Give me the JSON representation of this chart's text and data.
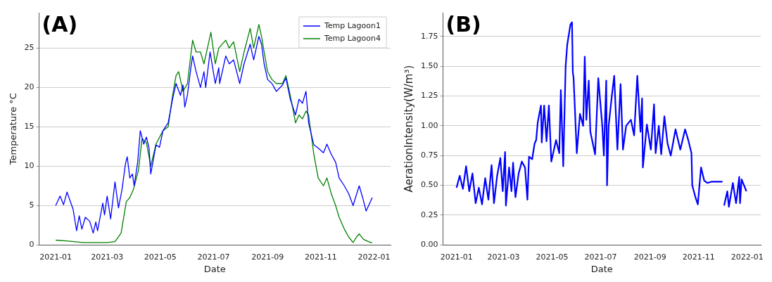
{
  "chart_data": [
    {
      "type": "line",
      "title": "(A)",
      "xlabel": "Date",
      "ylabel": "Temperature °C",
      "xlim": [
        "2020-12-13",
        "2022-01-20"
      ],
      "xticks": [
        "2021-01",
        "2021-03",
        "2021-05",
        "2021-07",
        "2021-09",
        "2021-11",
        "2022-01"
      ],
      "ylim": [
        0,
        29.5
      ],
      "yticks": [
        0,
        5,
        10,
        15,
        20,
        25
      ],
      "grid": "y",
      "legend": "top right",
      "series": [
        {
          "name": "Temp Lagoon1",
          "color": "#0000ff",
          "x": [
            "2021-01-01",
            "2021-01-06",
            "2021-01-10",
            "2021-01-14",
            "2021-01-21",
            "2021-01-25",
            "2021-01-28",
            "2021-01-31",
            "2021-02-04",
            "2021-02-09",
            "2021-02-13",
            "2021-02-16",
            "2021-02-18",
            "2021-02-24",
            "2021-02-26",
            "2021-03-01",
            "2021-03-05",
            "2021-03-10",
            "2021-03-14",
            "2021-03-18",
            "2021-03-22",
            "2021-03-24",
            "2021-03-27",
            "2021-03-30",
            "2021-04-01",
            "2021-04-05",
            "2021-04-08",
            "2021-04-12",
            "2021-04-15",
            "2021-04-18",
            "2021-04-20",
            "2021-04-26",
            "2021-04-30",
            "2021-05-04",
            "2021-05-10",
            "2021-05-15",
            "2021-05-19",
            "2021-05-24",
            "2021-05-27",
            "2021-05-29",
            "2021-06-01",
            "2021-06-05",
            "2021-06-07",
            "2021-06-11",
            "2021-06-16",
            "2021-06-20",
            "2021-06-22",
            "2021-06-27",
            "2021-07-03",
            "2021-07-07",
            "2021-07-08",
            "2021-07-15",
            "2021-07-19",
            "2021-07-24",
            "2021-07-31",
            "2021-08-05",
            "2021-08-12",
            "2021-08-16",
            "2021-08-22",
            "2021-08-25",
            "2021-08-28",
            "2021-09-01",
            "2021-09-06",
            "2021-09-11",
            "2021-09-18",
            "2021-09-22",
            "2021-09-27",
            "2021-10-03",
            "2021-10-07",
            "2021-10-11",
            "2021-10-15",
            "2021-10-18",
            "2021-10-24",
            "2021-10-29",
            "2021-11-04",
            "2021-11-08",
            "2021-11-13",
            "2021-11-18",
            "2021-11-22",
            "2021-11-28",
            "2021-12-03",
            "2021-12-08",
            "2021-12-15",
            "2021-12-19",
            "2021-12-23",
            "2021-12-30"
          ],
          "values": [
            5.0,
            6.2,
            5.1,
            6.7,
            4.5,
            1.8,
            3.7,
            2.0,
            3.5,
            3.0,
            1.5,
            2.9,
            1.8,
            5.3,
            3.8,
            6.2,
            3.3,
            8.0,
            4.7,
            7.0,
            10.3,
            11.2,
            8.5,
            9.0,
            7.5,
            10.5,
            14.5,
            12.8,
            13.7,
            12.3,
            9.0,
            12.7,
            12.4,
            14.5,
            15.5,
            18.5,
            20.5,
            19.0,
            20.3,
            17.5,
            19.0,
            22.5,
            24.0,
            22.0,
            20.0,
            22.0,
            20.0,
            24.5,
            20.5,
            22.5,
            20.5,
            24.0,
            23.0,
            23.5,
            20.5,
            23.0,
            25.5,
            23.5,
            26.5,
            25.5,
            23.0,
            21.0,
            20.5,
            19.5,
            20.3,
            21.2,
            18.5,
            16.5,
            18.5,
            18.0,
            19.5,
            15.5,
            12.7,
            12.3,
            11.7,
            12.8,
            11.5,
            10.5,
            8.5,
            7.5,
            6.5,
            5.0,
            7.5,
            6.0,
            4.3,
            6.0
          ]
        },
        {
          "name": "Temp Lagoon4",
          "color": "#008000",
          "x": [
            "2021-01-01",
            "2021-01-14",
            "2021-02-01",
            "2021-03-01",
            "2021-03-10",
            "2021-03-17",
            "2021-03-23",
            "2021-03-27",
            "2021-03-31",
            "2021-04-06",
            "2021-04-10",
            "2021-04-15",
            "2021-04-20",
            "2021-04-26",
            "2021-05-04",
            "2021-05-10",
            "2021-05-15",
            "2021-05-19",
            "2021-05-22",
            "2021-05-27",
            "2021-06-01",
            "2021-06-07",
            "2021-06-11",
            "2021-06-16",
            "2021-06-20",
            "2021-06-22",
            "2021-06-28",
            "2021-07-03",
            "2021-07-07",
            "2021-07-15",
            "2021-07-19",
            "2021-07-24",
            "2021-07-31",
            "2021-08-05",
            "2021-08-12",
            "2021-08-16",
            "2021-08-22",
            "2021-08-25",
            "2021-08-28",
            "2021-09-01",
            "2021-09-06",
            "2021-09-11",
            "2021-09-18",
            "2021-09-22",
            "2021-09-27",
            "2021-10-03",
            "2021-10-07",
            "2021-10-11",
            "2021-10-15",
            "2021-10-18",
            "2021-10-24",
            "2021-10-29",
            "2021-11-04",
            "2021-11-08",
            "2021-11-13",
            "2021-11-18",
            "2021-11-22",
            "2021-11-28",
            "2021-12-03",
            "2021-12-08",
            "2021-12-12",
            "2021-12-15",
            "2021-12-20",
            "2021-12-28",
            "2021-12-30"
          ],
          "values": [
            0.6,
            0.5,
            0.3,
            0.3,
            0.4,
            1.5,
            5.5,
            6.0,
            7.0,
            9.5,
            13.5,
            13.0,
            10.0,
            12.8,
            14.5,
            15.0,
            19.0,
            21.5,
            22.0,
            19.5,
            20.5,
            26.0,
            24.5,
            24.5,
            23.0,
            24.0,
            27.0,
            23.0,
            25.0,
            26.0,
            25.0,
            25.8,
            22.0,
            24.5,
            27.5,
            25.0,
            28.0,
            26.5,
            24.5,
            22.0,
            21.0,
            20.5,
            20.5,
            21.5,
            19.0,
            15.5,
            16.5,
            16.0,
            17.0,
            16.5,
            11.5,
            8.5,
            7.5,
            8.5,
            6.5,
            5.0,
            3.5,
            2.0,
            1.0,
            0.3,
            1.0,
            1.4,
            0.7,
            0.3,
            0.3
          ]
        }
      ]
    },
    {
      "type": "line",
      "title": "(B)",
      "xlabel": "Date",
      "ylabel": "AerationIntensity(W/m³)",
      "xlim": [
        "2020-12-15",
        "2022-01-18"
      ],
      "xticks": [
        "2021-01",
        "2021-03",
        "2021-05",
        "2021-07",
        "2021-09",
        "2021-11",
        "2022-01"
      ],
      "ylim": [
        0,
        1.95
      ],
      "yticks": [
        {
          "value": 0,
          "label": "0.00"
        },
        0.25,
        {
          "value": 0.5,
          "label": "0.50"
        },
        0.75,
        {
          "value": 1,
          "label": "1.00"
        },
        1.25,
        {
          "value": 1.5,
          "label": "1.50"
        },
        1.75
      ],
      "grid": "y",
      "series": [
        {
          "color": "#0000ff",
          "x": [
            "2021-01-01",
            "2021-01-05",
            "2021-01-09",
            "2021-01-13",
            "2021-01-17",
            "2021-01-21",
            "2021-01-25",
            "2021-01-29",
            "2021-02-02",
            "2021-02-06",
            "2021-02-10",
            "2021-02-14",
            "2021-02-17",
            "2021-02-21",
            "2021-02-25",
            "2021-02-28",
            "2021-03-03",
            "2021-03-04",
            "2021-03-08",
            "2021-03-11",
            "2021-03-13",
            "2021-03-16",
            "2021-03-20",
            "2021-03-24",
            "2021-03-28",
            "2021-03-31",
            "2021-04-02",
            "2021-04-06",
            "2021-04-09",
            "2021-04-11",
            "2021-04-13",
            "2021-04-17",
            "2021-04-18",
            "2021-04-21",
            "2021-04-24",
            "2021-04-27",
            "2021-04-30",
            "2021-05-06",
            "2021-05-10",
            "2021-05-12",
            "2021-05-15",
            "2021-05-18",
            "2021-05-20",
            "2021-05-24",
            "2021-05-26",
            "2021-05-27",
            "2021-05-28",
            "2021-06-01",
            "2021-06-05",
            "2021-06-09",
            "2021-06-11",
            "2021-06-13",
            "2021-06-16",
            "2021-06-18",
            "2021-06-24",
            "2021-06-28",
            "2021-07-03",
            "2021-07-05",
            "2021-07-08",
            "2021-07-09",
            "2021-07-11",
            "2021-07-15",
            "2021-07-18",
            "2021-07-22",
            "2021-07-26",
            "2021-07-29",
            "2021-08-02",
            "2021-08-08",
            "2021-08-12",
            "2021-08-16",
            "2021-08-20",
            "2021-08-22",
            "2021-08-23",
            "2021-08-28",
            "2021-09-02",
            "2021-09-06",
            "2021-09-08",
            "2021-09-12",
            "2021-09-15",
            "2021-09-19",
            "2021-09-23",
            "2021-09-27",
            "2021-10-03",
            "2021-10-09",
            "2021-10-15",
            "2021-10-19",
            "2021-10-23",
            "2021-10-24",
            "2021-10-28",
            "2021-10-31",
            "2021-11-04",
            "2021-11-08",
            "2021-11-12",
            "2021-11-17",
            "2021-12-01",
            "2021-12-02",
            "2021-12-03",
            "2021-12-07",
            "2021-12-09",
            "2021-12-14",
            "2021-12-18",
            "2021-12-22",
            "2021-12-23",
            "2021-12-25",
            "2021-12-31"
          ],
          "values": [
            0.48,
            0.58,
            0.47,
            0.66,
            0.45,
            0.6,
            0.35,
            0.48,
            0.34,
            0.56,
            0.38,
            0.67,
            0.35,
            0.58,
            0.73,
            0.45,
            0.78,
            0.33,
            0.65,
            0.45,
            0.69,
            0.4,
            0.6,
            0.7,
            0.65,
            0.38,
            0.74,
            0.72,
            0.85,
            0.88,
            1.03,
            1.17,
            0.86,
            1.17,
            0.87,
            1.17,
            0.7,
            0.88,
            0.77,
            1.3,
            0.66,
            1.5,
            1.68,
            1.85,
            1.87,
            1.45,
            1.4,
            0.77,
            1.1,
            1.0,
            1.58,
            1.05,
            1.38,
            0.95,
            0.76,
            1.4,
            1.0,
            0.75,
            1.38,
            0.5,
            1.0,
            1.25,
            1.42,
            0.8,
            1.35,
            0.8,
            1.0,
            1.05,
            0.92,
            1.42,
            0.95,
            1.23,
            0.65,
            1.01,
            0.8,
            1.18,
            0.77,
            1.0,
            0.76,
            1.08,
            0.85,
            0.75,
            0.97,
            0.8,
            0.97,
            0.88,
            0.77,
            0.5,
            0.4,
            0.34,
            0.65,
            0.54,
            0.52,
            0.53,
            0.53,
            null,
            0.33,
            0.45,
            0.32,
            0.52,
            0.35,
            0.57,
            0.35,
            0.55,
            0.45
          ]
        }
      ]
    }
  ]
}
